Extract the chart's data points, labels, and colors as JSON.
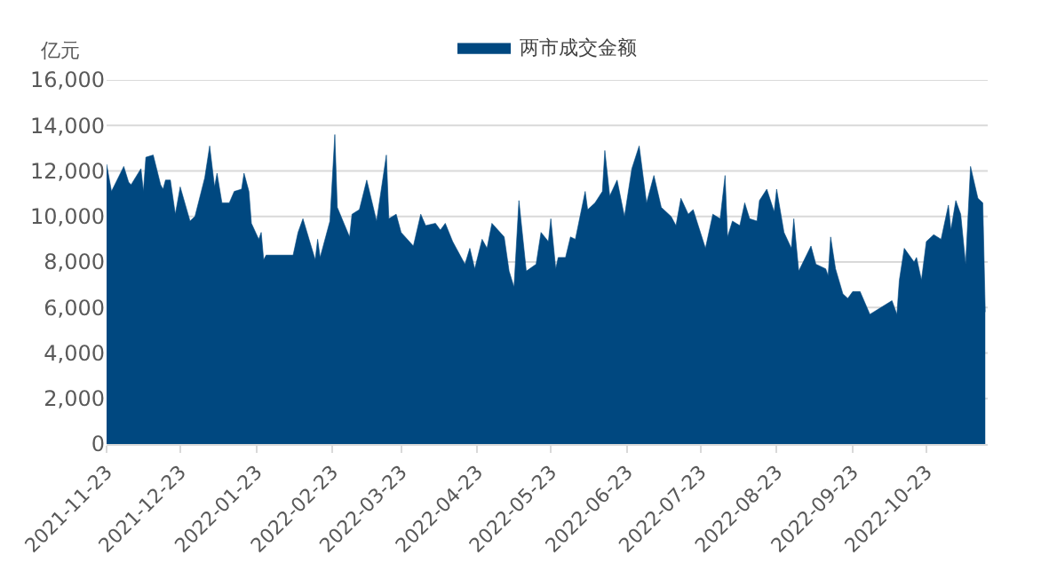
{
  "chart_data": {
    "type": "area",
    "ylabel": "亿元",
    "legend": "top",
    "grid": "y",
    "xlim": [
      "2021-11-23",
      "2022-11-17"
    ],
    "xticks": [
      "2021-11-23",
      "2021-12-23",
      "2022-01-23",
      "2022-02-23",
      "2022-03-23",
      "2022-04-23",
      "2022-05-23",
      "2022-06-23",
      "2022-07-23",
      "2022-08-23",
      "2022-09-23",
      "2022-10-23"
    ],
    "ylim": [
      0,
      16000
    ],
    "yticks": [
      0,
      {
        "value": 2000,
        "label": "2,000"
      },
      {
        "value": 4000,
        "label": "4,000"
      },
      {
        "value": 6000,
        "label": "6,000"
      },
      {
        "value": 8000,
        "label": "8,000"
      },
      {
        "value": 10000,
        "label": "10,000"
      },
      {
        "value": 12000,
        "label": "12,000"
      },
      {
        "value": 14000,
        "label": "14,000"
      },
      {
        "value": 16000,
        "label": "16,000"
      }
    ],
    "x": [
      "2021-11-23",
      "2021-11-25",
      "2021-11-30",
      "2021-12-02",
      "2021-12-03",
      "2021-12-07",
      "2021-12-08",
      "2021-12-09",
      "2021-12-12",
      "2021-12-15",
      "2021-12-16",
      "2021-12-17",
      "2021-12-19",
      "2021-12-21",
      "2021-12-23",
      "2021-12-27",
      "2021-12-29",
      "2022-01-02",
      "2022-01-04",
      "2022-01-06",
      "2022-01-07",
      "2022-01-09",
      "2022-01-12",
      "2022-01-14",
      "2022-01-17",
      "2022-01-18",
      "2022-01-20",
      "2022-01-21",
      "2022-01-24",
      "2022-01-25",
      "2022-01-26",
      "2022-01-27",
      "2022-02-07",
      "2022-02-09",
      "2022-02-11",
      "2022-02-16",
      "2022-02-17",
      "2022-02-18",
      "2022-02-22",
      "2022-02-24",
      "2022-02-25",
      "2022-03-02",
      "2022-03-03",
      "2022-03-06",
      "2022-03-09",
      "2022-03-13",
      "2022-03-17",
      "2022-03-18",
      "2022-03-21",
      "2022-03-23",
      "2022-03-28",
      "2022-03-31",
      "2022-04-02",
      "2022-04-06",
      "2022-04-08",
      "2022-04-10",
      "2022-04-13",
      "2022-04-18",
      "2022-04-20",
      "2022-04-22",
      "2022-04-25",
      "2022-04-27",
      "2022-04-29",
      "2022-05-04",
      "2022-05-06",
      "2022-05-08",
      "2022-05-10",
      "2022-05-13",
      "2022-05-17",
      "2022-05-19",
      "2022-05-22",
      "2022-05-23",
      "2022-05-25",
      "2022-05-26",
      "2022-05-29",
      "2022-05-31",
      "2022-06-02",
      "2022-06-06",
      "2022-06-07",
      "2022-06-10",
      "2022-06-13",
      "2022-06-14",
      "2022-06-16",
      "2022-06-19",
      "2022-06-22",
      "2022-06-25",
      "2022-06-28",
      "2022-07-01",
      "2022-07-04",
      "2022-07-07",
      "2022-07-11",
      "2022-07-13",
      "2022-07-15",
      "2022-07-18",
      "2022-07-20",
      "2022-07-25",
      "2022-07-28",
      "2022-07-31",
      "2022-08-02",
      "2022-08-03",
      "2022-08-05",
      "2022-08-08",
      "2022-08-10",
      "2022-08-12",
      "2022-08-15",
      "2022-08-16",
      "2022-08-19",
      "2022-08-22",
      "2022-08-23",
      "2022-08-26",
      "2022-08-29",
      "2022-08-30",
      "2022-09-01",
      "2022-09-06",
      "2022-09-08",
      "2022-09-12",
      "2022-09-13",
      "2022-09-14",
      "2022-09-16",
      "2022-09-19",
      "2022-09-21",
      "2022-09-23",
      "2022-09-26",
      "2022-09-30",
      "2022-10-09",
      "2022-10-11",
      "2022-10-12",
      "2022-10-14",
      "2022-10-18",
      "2022-10-19",
      "2022-10-21",
      "2022-10-23",
      "2022-10-26",
      "2022-10-29",
      "2022-11-01",
      "2022-11-02",
      "2022-11-04",
      "2022-11-06",
      "2022-11-08",
      "2022-11-10",
      "2022-11-13",
      "2022-11-15",
      "2022-11-16"
    ],
    "series": [
      {
        "name": "两市成交金额",
        "color": "#004880",
        "values": [
          12300,
          11100,
          12200,
          11500,
          11400,
          12100,
          11100,
          12600,
          12700,
          11400,
          11200,
          11600,
          11600,
          10100,
          11300,
          9800,
          10000,
          11700,
          13100,
          11300,
          11900,
          10600,
          10600,
          11100,
          11200,
          11900,
          11100,
          9700,
          9000,
          9300,
          8100,
          8300,
          8300,
          9300,
          9900,
          8100,
          9000,
          8200,
          9800,
          13600,
          10400,
          9100,
          10100,
          10300,
          11600,
          9800,
          12700,
          9900,
          10100,
          9300,
          8700,
          10100,
          9600,
          9700,
          9400,
          9700,
          8900,
          7900,
          8600,
          7700,
          9000,
          8600,
          9700,
          9100,
          7600,
          6900,
          10700,
          7600,
          7900,
          9300,
          8900,
          9900,
          7700,
          8200,
          8200,
          9100,
          9000,
          11100,
          10300,
          10600,
          11100,
          12900,
          10900,
          11600,
          10000,
          12100,
          13100,
          10600,
          11800,
          10400,
          10000,
          9600,
          10800,
          10100,
          10300,
          8600,
          10100,
          9900,
          11800,
          9100,
          9800,
          9600,
          10600,
          9900,
          9800,
          10700,
          11200,
          10200,
          11200,
          9300,
          8600,
          9900,
          7600,
          8700,
          7900,
          7700,
          7400,
          9100,
          7700,
          6600,
          6400,
          6700,
          6700,
          5700,
          6300,
          5700,
          7200,
          8600,
          8000,
          8200,
          7200,
          8900,
          9200,
          9000,
          10500,
          9400,
          10700,
          10100,
          7900,
          12200,
          10800,
          10600,
          5800
        ]
      }
    ]
  }
}
